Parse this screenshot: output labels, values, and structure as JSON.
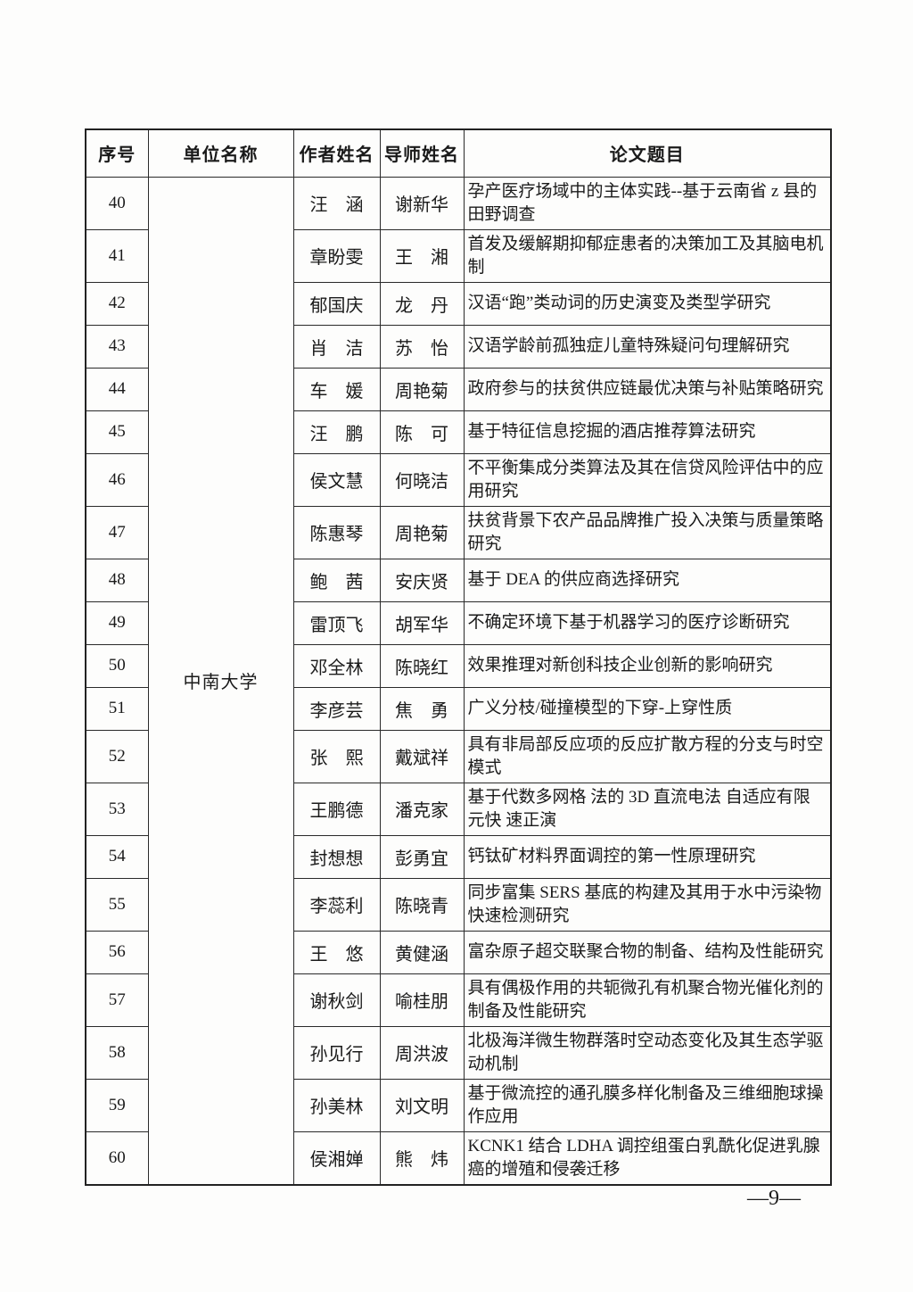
{
  "page": {
    "footer_page_number": "—9—"
  },
  "table": {
    "headers": [
      "序号",
      "单位名称",
      "作者姓名",
      "导师姓名",
      "论文题目"
    ],
    "unit_name": "中南大学",
    "rows": [
      {
        "no": "40",
        "author": "汪　涵",
        "advisor": "谢新华",
        "title": "孕产医疗场域中的主体实践--基于云南省 z 县的田野调查"
      },
      {
        "no": "41",
        "author": "章盼雯",
        "advisor": "王　湘",
        "title": "首发及缓解期抑郁症患者的决策加工及其脑电机制"
      },
      {
        "no": "42",
        "author": "郁国庆",
        "advisor": "龙　丹",
        "title": "汉语“跑”类动词的历史演变及类型学研究"
      },
      {
        "no": "43",
        "author": "肖　洁",
        "advisor": "苏　怡",
        "title": "汉语学龄前孤独症儿童特殊疑问句理解研究"
      },
      {
        "no": "44",
        "author": "车　媛",
        "advisor": "周艳菊",
        "title": "政府参与的扶贫供应链最优决策与补贴策略研究"
      },
      {
        "no": "45",
        "author": "汪　鹏",
        "advisor": "陈　可",
        "title": "基于特征信息挖掘的酒店推荐算法研究"
      },
      {
        "no": "46",
        "author": "侯文慧",
        "advisor": "何晓洁",
        "title": "不平衡集成分类算法及其在信贷风险评估中的应用研究"
      },
      {
        "no": "47",
        "author": "陈惠琴",
        "advisor": "周艳菊",
        "title": "扶贫背景下农产品品牌推广投入决策与质量策略研究"
      },
      {
        "no": "48",
        "author": "鲍　茜",
        "advisor": "安庆贤",
        "title": "基于 DEA 的供应商选择研究"
      },
      {
        "no": "49",
        "author": "雷顶飞",
        "advisor": "胡军华",
        "title": "不确定环境下基于机器学习的医疗诊断研究"
      },
      {
        "no": "50",
        "author": "邓全林",
        "advisor": "陈晓红",
        "title": "效果推理对新创科技企业创新的影响研究"
      },
      {
        "no": "51",
        "author": "李彦芸",
        "advisor": "焦　勇",
        "title": "广义分枝/碰撞模型的下穿-上穿性质"
      },
      {
        "no": "52",
        "author": "张　熙",
        "advisor": "戴斌祥",
        "title": "具有非局部反应项的反应扩散方程的分支与时空模式"
      },
      {
        "no": "53",
        "author": "王鹏德",
        "advisor": "潘克家",
        "title": "基于代数多网格 法的 3D 直流电法 自适应有限元快 速正演"
      },
      {
        "no": "54",
        "author": "封想想",
        "advisor": "彭勇宜",
        "title": "钙钛矿材料界面调控的第一性原理研究"
      },
      {
        "no": "55",
        "author": "李蕊利",
        "advisor": "陈晓青",
        "title": "同步富集 SERS 基底的构建及其用于水中污染物快速检测研究"
      },
      {
        "no": "56",
        "author": "王　悠",
        "advisor": "黄健涵",
        "title": "富杂原子超交联聚合物的制备、结构及性能研究"
      },
      {
        "no": "57",
        "author": "谢秋剑",
        "advisor": "喻桂朋",
        "title": "具有偶极作用的共轭微孔有机聚合物光催化剂的制备及性能研究"
      },
      {
        "no": "58",
        "author": "孙见行",
        "advisor": "周洪波",
        "title": "北极海洋微生物群落时空动态变化及其生态学驱动机制"
      },
      {
        "no": "59",
        "author": "孙美林",
        "advisor": "刘文明",
        "title": "基于微流控的通孔膜多样化制备及三维细胞球操作应用"
      },
      {
        "no": "60",
        "author": "侯湘婵",
        "advisor": "熊　炜",
        "title": "KCNK1 结合 LDHA 调控组蛋白乳酰化促进乳腺癌的增殖和侵袭迁移"
      }
    ]
  }
}
